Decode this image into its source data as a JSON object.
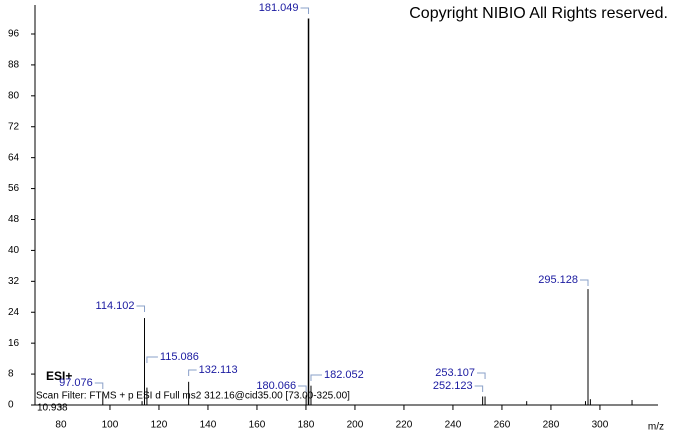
{
  "chart_data": {
    "type": "stick",
    "title": "Copyright NIBIO All Rights reserved.",
    "annotations": [
      "ESI+",
      "Scan Filter: FTMS + p ESI d Full ms2 312.16@cid35.00 [73.00-325.00]",
      "10.938"
    ],
    "x_label": "m/z",
    "color": "#000000",
    "label_color": "#1a1aa0",
    "series": [
      {
        "x": [
          97.076,
          114.102,
          115.086,
          132.113,
          180.066,
          181.049,
          182.052,
          252.123,
          253.107,
          295.128
        ],
        "values": [
          3,
          22.5,
          4.5,
          6,
          2.5,
          100,
          5,
          2.2,
          2.2,
          30
        ]
      },
      {
        "x": [
          113.1,
          270.1,
          294.1,
          296.1,
          313.1
        ],
        "values": [
          1,
          1,
          1,
          1.5,
          1.3
        ]
      }
    ],
    "xlim": [
      69.4,
      323.7
    ],
    "xticks": [
      80,
      100,
      120,
      140,
      160,
      180,
      200,
      220,
      240,
      260,
      280,
      300
    ],
    "ylim": [
      0,
      103.5
    ],
    "yticks": [
      0,
      8,
      16,
      24,
      32,
      40,
      48,
      56,
      64,
      72,
      80,
      88,
      96
    ]
  }
}
